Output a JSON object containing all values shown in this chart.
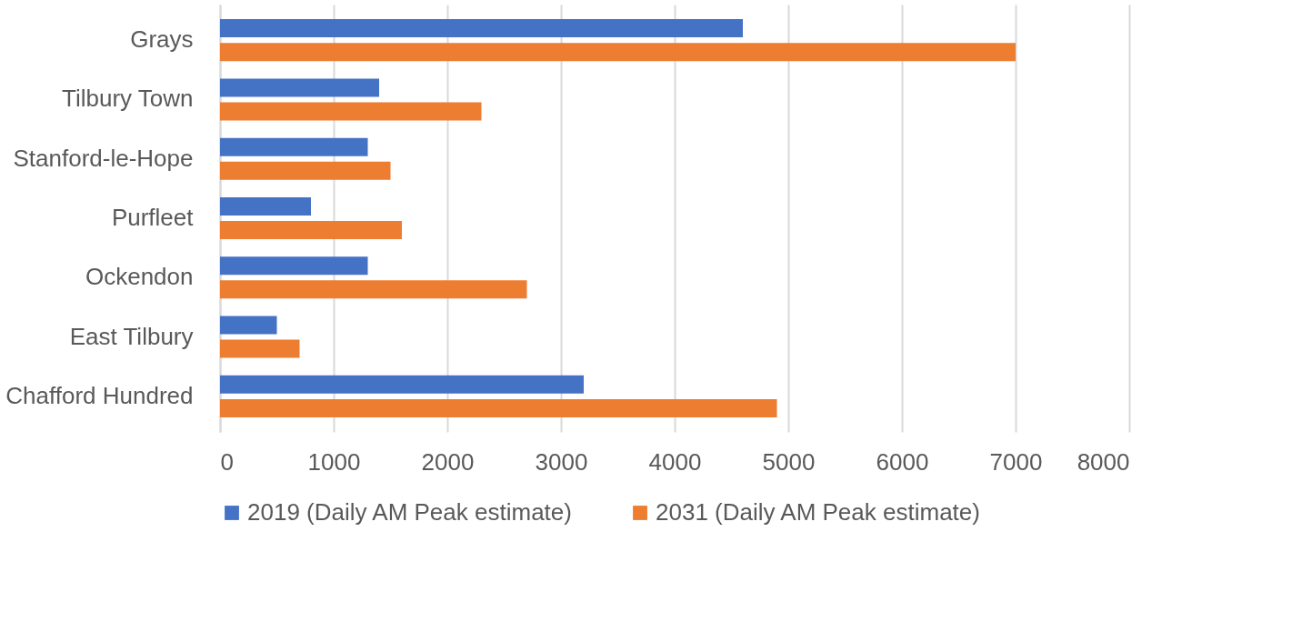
{
  "chart_data": {
    "type": "bar",
    "orientation": "horizontal",
    "categories": [
      "Grays",
      "Tilbury Town",
      "Stanford-le-Hope",
      "Purfleet",
      "Ockendon",
      "East Tilbury",
      "Chafford Hundred"
    ],
    "series": [
      {
        "name": "2019 (Daily AM Peak estimate)",
        "color": "#4472c4",
        "values": [
          4600,
          1400,
          1300,
          800,
          1300,
          500,
          3200
        ]
      },
      {
        "name": "2031 (Daily AM Peak estimate)",
        "color": "#ed7d31",
        "values": [
          7000,
          2300,
          1500,
          1600,
          2700,
          700,
          4900
        ]
      }
    ],
    "xlim": [
      0,
      8000
    ],
    "xticks": [
      0,
      1000,
      2000,
      3000,
      4000,
      5000,
      6000,
      7000,
      8000
    ],
    "grid": "x",
    "legend": "bottom"
  }
}
